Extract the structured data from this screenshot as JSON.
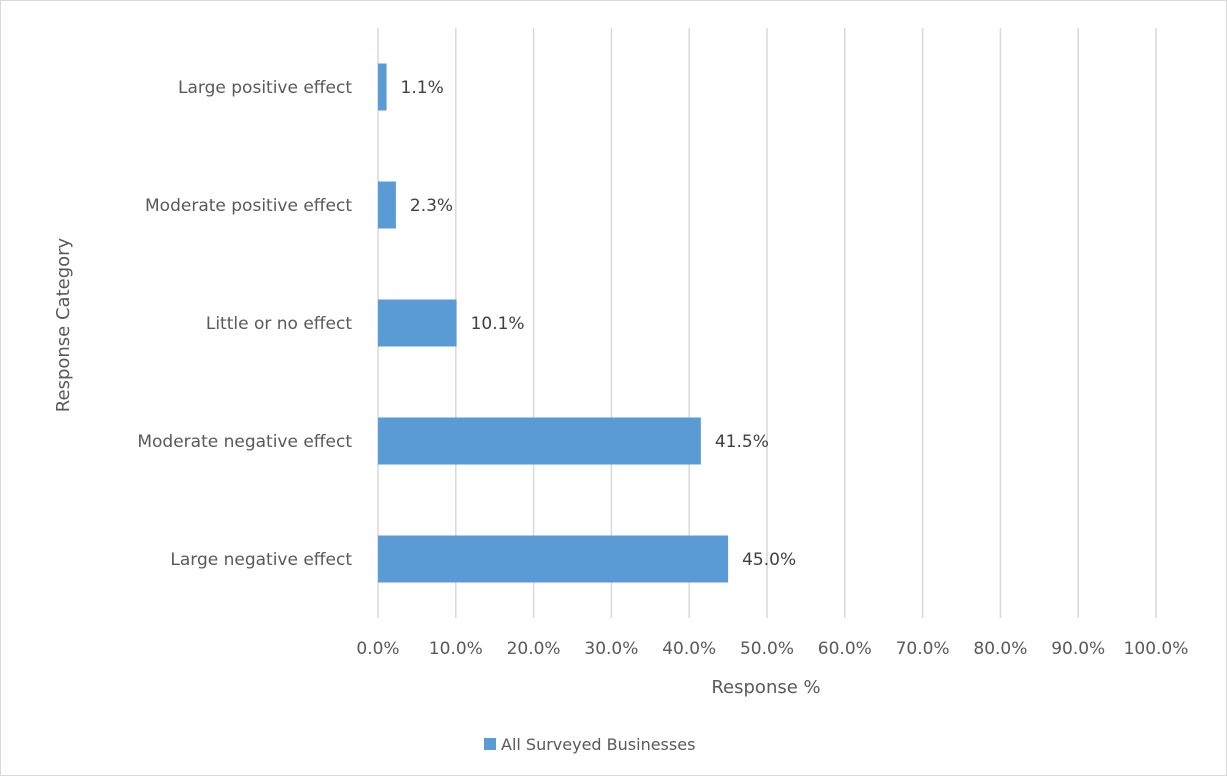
{
  "chart_data": {
    "type": "bar",
    "orientation": "horizontal",
    "categories": [
      "Large positive effect",
      "Moderate positive effect",
      "Little or no effect",
      "Moderate negative effect",
      "Large negative effect"
    ],
    "series": [
      {
        "name": "All Surveyed Businesses",
        "values": [
          1.1,
          2.3,
          10.1,
          41.5,
          45.0
        ],
        "data_labels": [
          "1.1%",
          "2.3%",
          "10.1%",
          "41.5%",
          "45.0%"
        ],
        "color": "#5b9bd5"
      }
    ],
    "title": "",
    "xlabel": "Response %",
    "ylabel": "Response Category",
    "xlim": [
      0,
      100
    ],
    "x_ticks": [
      0,
      10,
      20,
      30,
      40,
      50,
      60,
      70,
      80,
      90,
      100
    ],
    "x_tick_labels": [
      "0.0%",
      "10.0%",
      "20.0%",
      "30.0%",
      "40.0%",
      "50.0%",
      "60.0%",
      "70.0%",
      "80.0%",
      "90.0%",
      "100.0%"
    ],
    "grid": "vertical",
    "legend": "bottom",
    "gridline_color": "#d9d9d9"
  }
}
